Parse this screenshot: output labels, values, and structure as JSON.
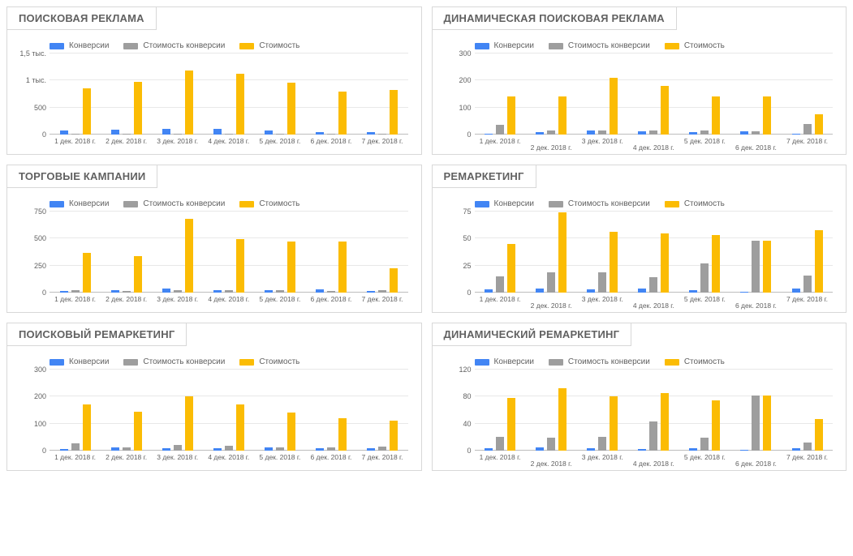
{
  "colors": {
    "series1": "#4285f4",
    "series2": "#9e9e9e",
    "series3": "#fbbc04",
    "grid": "#e8e8e8",
    "axis": "#bdbdbd",
    "text": "#616161",
    "panel_border": "#d8d8d8",
    "background": "#ffffff"
  },
  "fonts": {
    "title_size": 13,
    "legend_size": 10,
    "tick_size": 9
  },
  "legend_labels": [
    "Конверсии",
    "Стоимость конверсии",
    "Стоимость"
  ],
  "categories": [
    "1 дек. 2018 г.",
    "2 дек. 2018 г.",
    "3 дек. 2018 г.",
    "4 дек. 2018 г.",
    "5 дек. 2018 г.",
    "6 дек. 2018 г.",
    "7 дек. 2018 г."
  ],
  "panels": [
    {
      "id": "search-ads",
      "title": "ПОИСКОВАЯ РЕКЛАМА",
      "type": "bar",
      "y_max": 1500,
      "y_ticks": [
        0,
        500,
        1000,
        1500
      ],
      "y_tick_labels": [
        "0",
        "500",
        "1 тыс.",
        "1,5 тыс."
      ],
      "stagger_x": false,
      "series": [
        {
          "name": "Конверсии",
          "color": "#4285f4",
          "values": [
            80,
            90,
            100,
            100,
            70,
            50,
            45
          ]
        },
        {
          "name": "Стоимость конверсии",
          "color": "#9e9e9e",
          "values": [
            11,
            11,
            12,
            11,
            13,
            15,
            18
          ]
        },
        {
          "name": "Стоимость",
          "color": "#fbbc04",
          "values": [
            860,
            980,
            1180,
            1120,
            960,
            790,
            830
          ]
        }
      ]
    },
    {
      "id": "dynamic-search-ads",
      "title": "ДИНАМИЧЕСКАЯ ПОИСКОВАЯ РЕКЛАМА",
      "type": "bar",
      "y_max": 300,
      "y_ticks": [
        0,
        100,
        200,
        300
      ],
      "y_tick_labels": [
        "0",
        "100",
        "200",
        "300"
      ],
      "stagger_x": true,
      "series": [
        {
          "name": "Конверсии",
          "color": "#4285f4",
          "values": [
            4,
            10,
            15,
            13,
            10,
            12,
            2
          ]
        },
        {
          "name": "Стоимость конверсии",
          "color": "#9e9e9e",
          "values": [
            35,
            14,
            14,
            14,
            14,
            12,
            38
          ]
        },
        {
          "name": "Стоимость",
          "color": "#fbbc04",
          "values": [
            140,
            140,
            210,
            180,
            140,
            140,
            75
          ]
        }
      ]
    },
    {
      "id": "shopping",
      "title": "ТОРГОВЫЕ КАМПАНИИ",
      "type": "bar",
      "y_max": 750,
      "y_ticks": [
        0,
        250,
        500,
        750
      ],
      "y_tick_labels": [
        "0",
        "250",
        "500",
        "750"
      ],
      "stagger_x": false,
      "series": [
        {
          "name": "Конверсии",
          "color": "#4285f4",
          "values": [
            15,
            20,
            35,
            25,
            20,
            30,
            12
          ]
        },
        {
          "name": "Стоимость конверсии",
          "color": "#9e9e9e",
          "values": [
            25,
            17,
            20,
            20,
            24,
            16,
            19
          ]
        },
        {
          "name": "Стоимость",
          "color": "#fbbc04",
          "values": [
            370,
            335,
            680,
            495,
            470,
            475,
            225
          ]
        }
      ]
    },
    {
      "id": "remarketing",
      "title": "РЕМАРКЕТИНГ",
      "type": "bar",
      "y_max": 75,
      "y_ticks": [
        0,
        25,
        50,
        75
      ],
      "y_tick_labels": [
        "0",
        "25",
        "50",
        "75"
      ],
      "stagger_x": true,
      "series": [
        {
          "name": "Конверсии",
          "color": "#4285f4",
          "values": [
            3,
            4,
            3,
            4,
            2,
            1,
            4
          ]
        },
        {
          "name": "Стоимость конверсии",
          "color": "#9e9e9e",
          "values": [
            15,
            19,
            19,
            14,
            27,
            48,
            16
          ]
        },
        {
          "name": "Стоимость",
          "color": "#fbbc04",
          "values": [
            45,
            74,
            56,
            55,
            53,
            48,
            58
          ]
        }
      ]
    },
    {
      "id": "search-remarketing",
      "title": "ПОИСКОВЫЙ РЕМАРКЕТИНГ",
      "type": "bar",
      "y_max": 300,
      "y_ticks": [
        0,
        100,
        200,
        300
      ],
      "y_tick_labels": [
        "0",
        "100",
        "200",
        "300"
      ],
      "stagger_x": false,
      "series": [
        {
          "name": "Конверсии",
          "color": "#4285f4",
          "values": [
            6,
            12,
            9,
            10,
            12,
            10,
            8
          ]
        },
        {
          "name": "Стоимость конверсии",
          "color": "#9e9e9e",
          "values": [
            28,
            12,
            22,
            17,
            12,
            12,
            14
          ]
        },
        {
          "name": "Стоимость",
          "color": "#fbbc04",
          "values": [
            170,
            145,
            200,
            170,
            140,
            120,
            110
          ]
        }
      ]
    },
    {
      "id": "dynamic-remarketing",
      "title": "ДИНАМИЧЕСКИЙ РЕМАРКЕТИНГ",
      "type": "bar",
      "y_max": 120,
      "y_ticks": [
        0,
        40,
        80,
        120
      ],
      "y_tick_labels": [
        "0",
        "40",
        "80",
        "120"
      ],
      "stagger_x": true,
      "series": [
        {
          "name": "Конверсии",
          "color": "#4285f4",
          "values": [
            4,
            5,
            4,
            2,
            4,
            1,
            4
          ]
        },
        {
          "name": "Стоимость конверсии",
          "color": "#9e9e9e",
          "values": [
            20,
            19,
            20,
            43,
            19,
            82,
            12
          ]
        },
        {
          "name": "Стоимость",
          "color": "#fbbc04",
          "values": [
            78,
            93,
            80,
            85,
            75,
            82,
            47
          ]
        }
      ]
    }
  ]
}
